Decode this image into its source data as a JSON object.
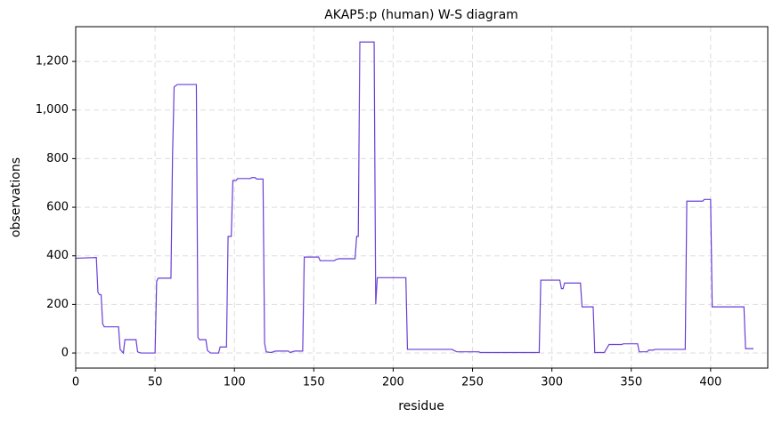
{
  "chart_data": {
    "type": "line",
    "title": "AKAP5:p (human) W-S diagram",
    "x_label": "residue",
    "y_label": "observations",
    "x": [
      0,
      13,
      14,
      15,
      16,
      17,
      18,
      27,
      28,
      30,
      31,
      38,
      39,
      41,
      50,
      51,
      52,
      60,
      61,
      62,
      64,
      76,
      77,
      78,
      82,
      83,
      85,
      90,
      91,
      95,
      96,
      98,
      99,
      101,
      102,
      110,
      111,
      113,
      114,
      118,
      119,
      120,
      123,
      126,
      134,
      135,
      138,
      143,
      144,
      153,
      154,
      163,
      164,
      166,
      176,
      177,
      178,
      179,
      188,
      189,
      190,
      208,
      209,
      237,
      240,
      254,
      255,
      292,
      293,
      305,
      306,
      307,
      308,
      318,
      319,
      326,
      327,
      333,
      336,
      344,
      345,
      354,
      355,
      360,
      361,
      364,
      365,
      384,
      385,
      395,
      396,
      400,
      401,
      421,
      422,
      427
    ],
    "series": [
      {
        "name": "observations",
        "color": "#6a3fd6",
        "values": [
          390,
          393,
          250,
          240,
          240,
          120,
          108,
          108,
          15,
          0,
          55,
          55,
          5,
          0,
          0,
          295,
          308,
          308,
          810,
          1095,
          1105,
          1105,
          65,
          55,
          55,
          10,
          0,
          0,
          25,
          25,
          480,
          480,
          710,
          710,
          718,
          718,
          722,
          722,
          716,
          716,
          40,
          5,
          2,
          8,
          8,
          2,
          8,
          8,
          395,
          395,
          380,
          380,
          385,
          388,
          388,
          480,
          480,
          1280,
          1280,
          200,
          310,
          310,
          15,
          15,
          5,
          5,
          2,
          2,
          300,
          300,
          265,
          265,
          288,
          288,
          190,
          190,
          2,
          2,
          35,
          35,
          38,
          38,
          5,
          5,
          12,
          12,
          15,
          15,
          625,
          625,
          632,
          632,
          190,
          190,
          18,
          18
        ]
      }
    ],
    "xlim": [
      0,
      436
    ],
    "ylim": [
      -62,
      1343
    ],
    "xticks": [
      0,
      50,
      100,
      150,
      200,
      250,
      300,
      350,
      400
    ],
    "yticks": [
      0,
      200,
      400,
      600,
      800,
      {
        "value": 1000,
        "label": "1,000"
      },
      {
        "value": 1200,
        "label": "1,200"
      }
    ],
    "grid": true
  }
}
